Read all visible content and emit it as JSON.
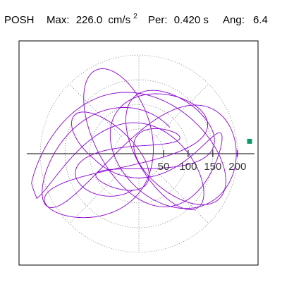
{
  "header": {
    "station": "POSH",
    "max_label": "Max:",
    "max_value": "226.0",
    "max_unit": "cm/s",
    "max_unit_exp": "2",
    "per_label": "Per:",
    "per_value": "0.420 s",
    "ang_label": "Ang:",
    "ang_value": "6.4"
  },
  "colors": {
    "trace": "#8b00d4",
    "marker": "#0a9a6e",
    "grid": "#888888",
    "frame": "#000000",
    "axis": "#000000"
  },
  "chart_data": {
    "type": "polar",
    "grid": "dotted",
    "radial_range": [
      0,
      226
    ],
    "radial_ticks": [
      50,
      100,
      150,
      200
    ],
    "radial_tick_labels": [
      "50",
      "100",
      "150",
      "200"
    ],
    "angular_grid_step_deg": 45,
    "max_value": 226.0,
    "max_angle_deg": 6.4,
    "period_s": 0.42,
    "marker": {
      "r": 226.0,
      "angle_deg": 6.4
    },
    "trace": {
      "components": [
        {
          "a": 140,
          "b": 85,
          "tilt_deg": 35,
          "fx": 1.0,
          "fy": 1.31,
          "phase_deg": 0
        },
        {
          "a": 92,
          "b": 44,
          "tilt_deg": -38,
          "fx": 0.71,
          "fy": 0.93,
          "phase_deg": 60
        },
        {
          "a": 118,
          "b": 22,
          "tilt_deg": 4,
          "fx": 0.43,
          "fy": 0.61,
          "phase_deg": 120
        }
      ]
    }
  }
}
